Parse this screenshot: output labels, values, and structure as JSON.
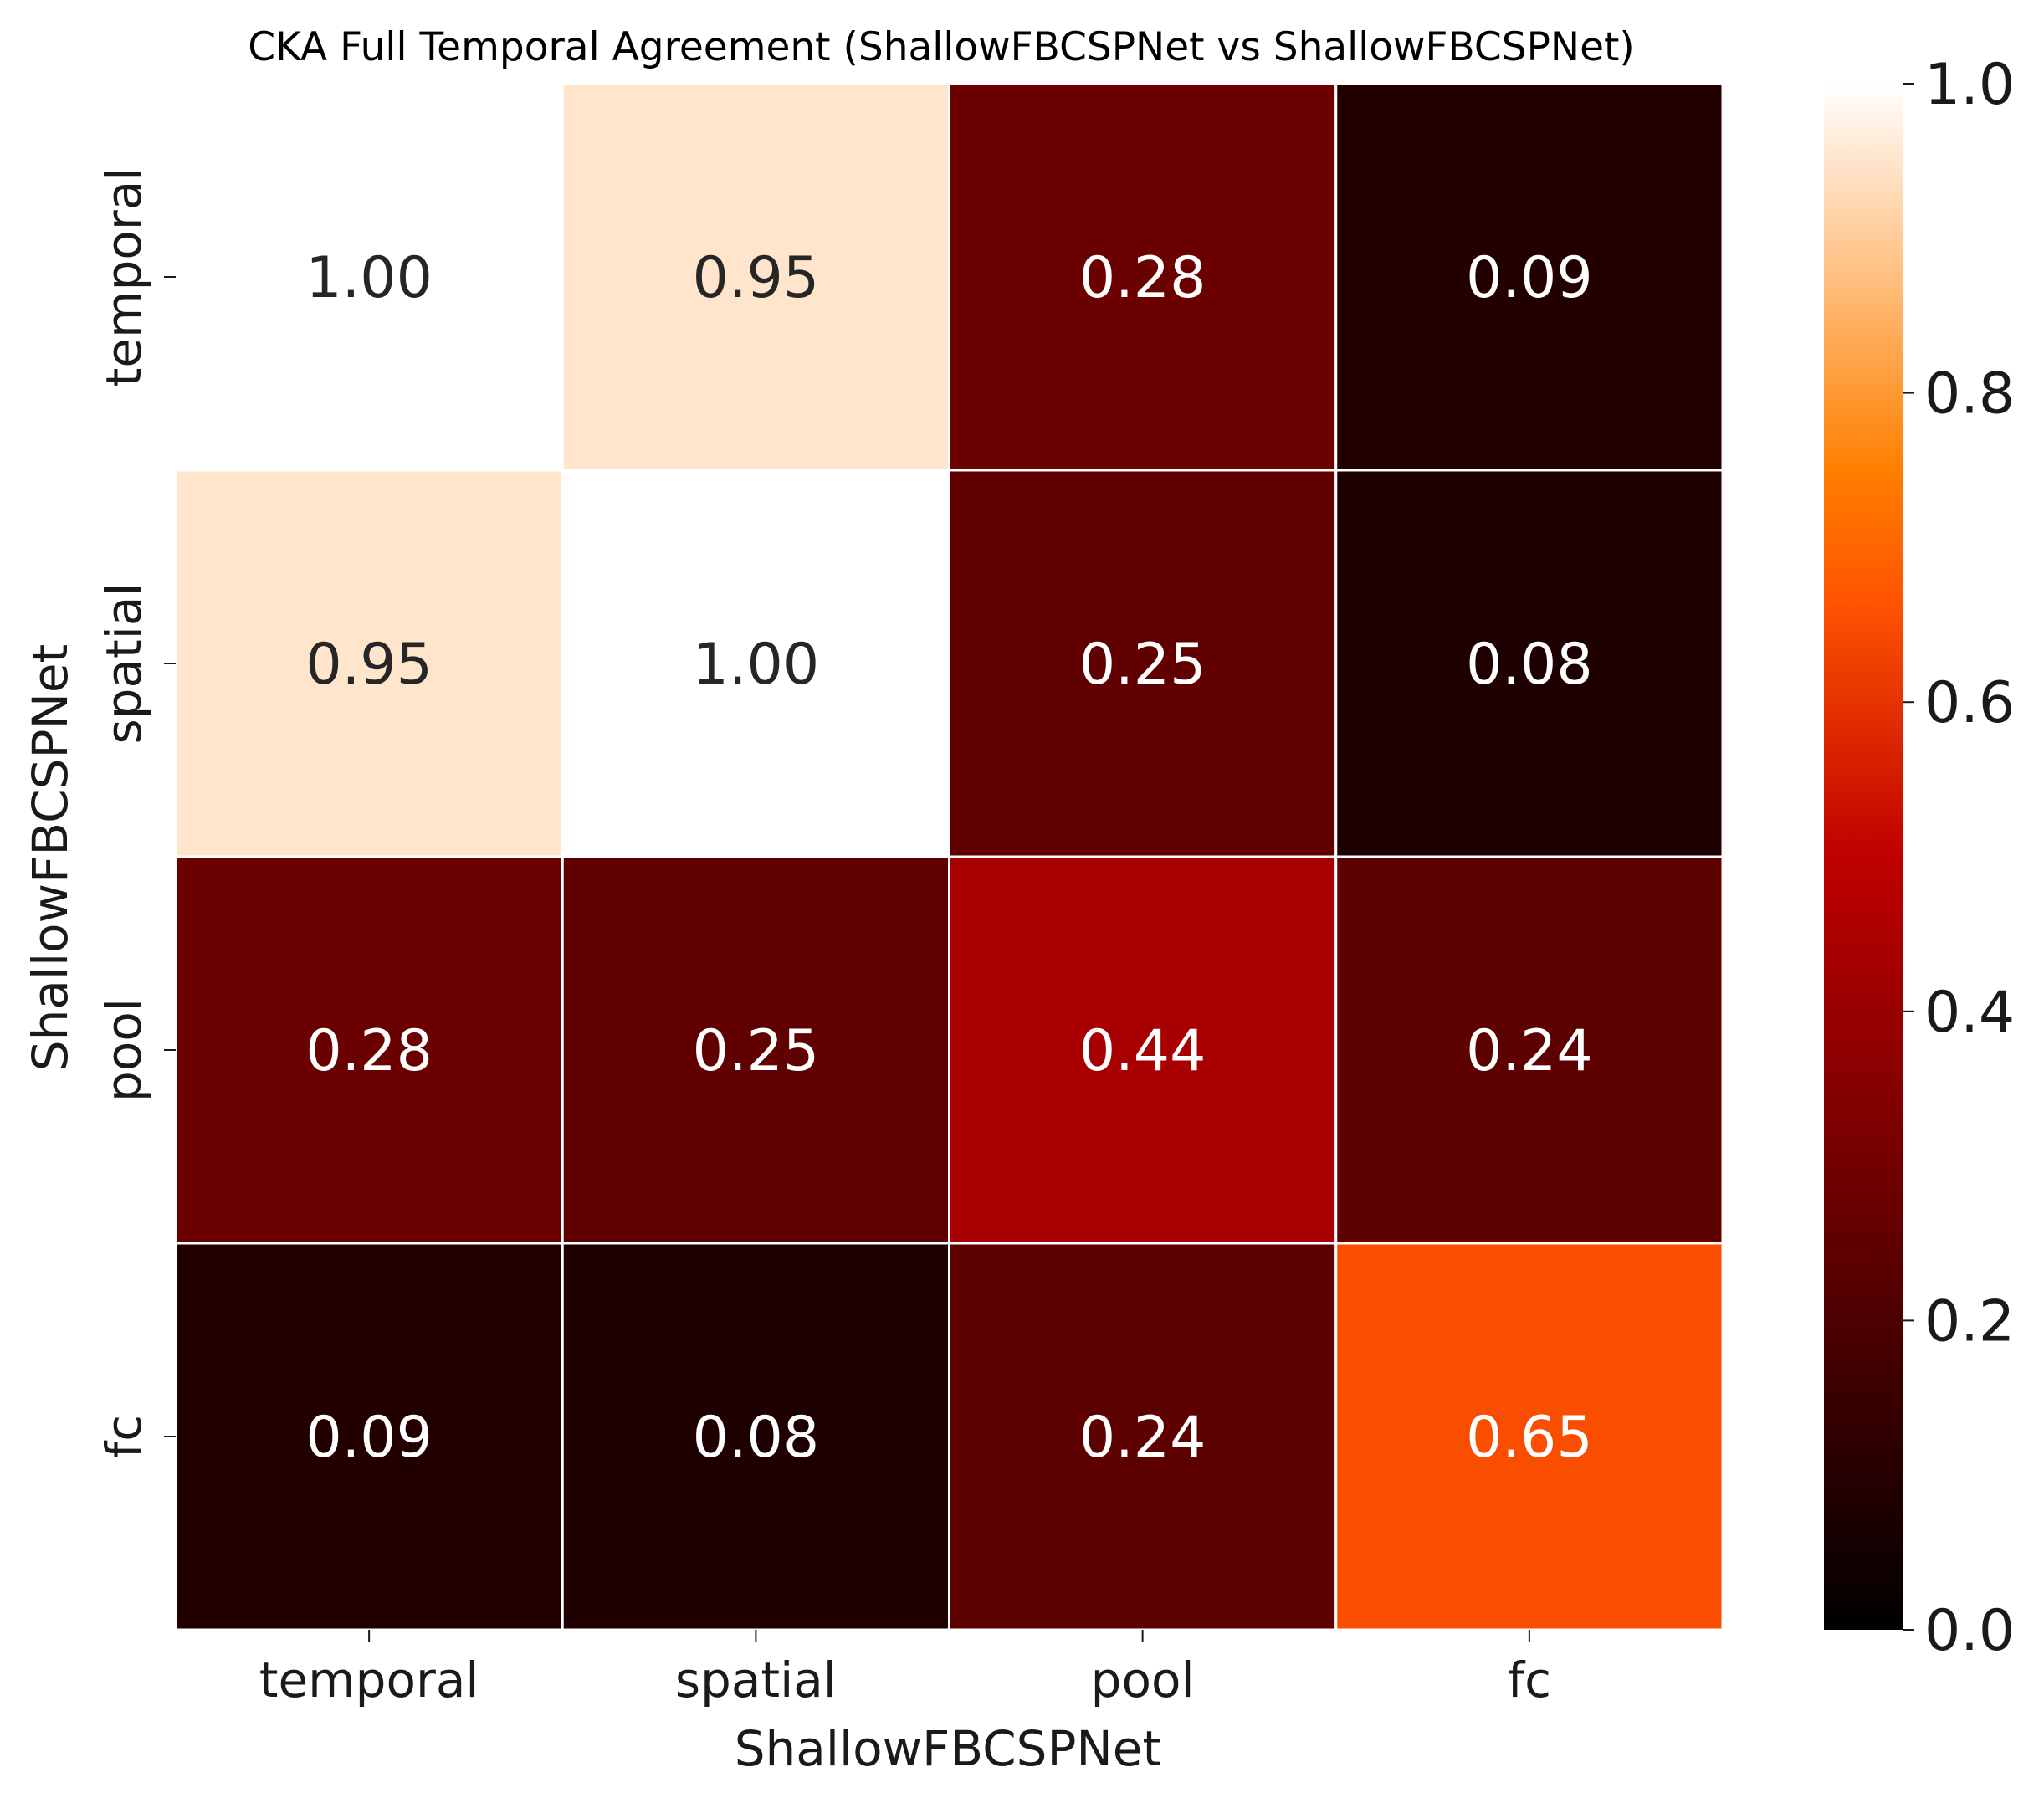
{
  "chart_data": {
    "type": "heatmap",
    "title": "CKA Full Temporal Agreement (ShallowFBCSPNet vs ShallowFBCSPNet)",
    "xlabel": "ShallowFBCSPNet",
    "ylabel": "ShallowFBCSPNet",
    "x_categories": [
      "temporal",
      "spatial",
      "pool",
      "fc"
    ],
    "y_categories": [
      "temporal",
      "spatial",
      "pool",
      "fc"
    ],
    "values": [
      [
        1.0,
        0.95,
        0.28,
        0.09
      ],
      [
        0.95,
        1.0,
        0.25,
        0.08
      ],
      [
        0.28,
        0.25,
        0.44,
        0.24
      ],
      [
        0.09,
        0.08,
        0.24,
        0.65
      ]
    ],
    "value_format": "0.00",
    "colormap": "gist_heat",
    "colorbar": {
      "range": [
        0.0,
        1.0
      ],
      "ticks": [
        "0.0",
        "0.2",
        "0.4",
        "0.6",
        "0.8",
        "1.0"
      ],
      "tick_values": [
        0.0,
        0.2,
        0.4,
        0.6,
        0.8,
        1.0
      ]
    },
    "grid": "white cell separators"
  }
}
